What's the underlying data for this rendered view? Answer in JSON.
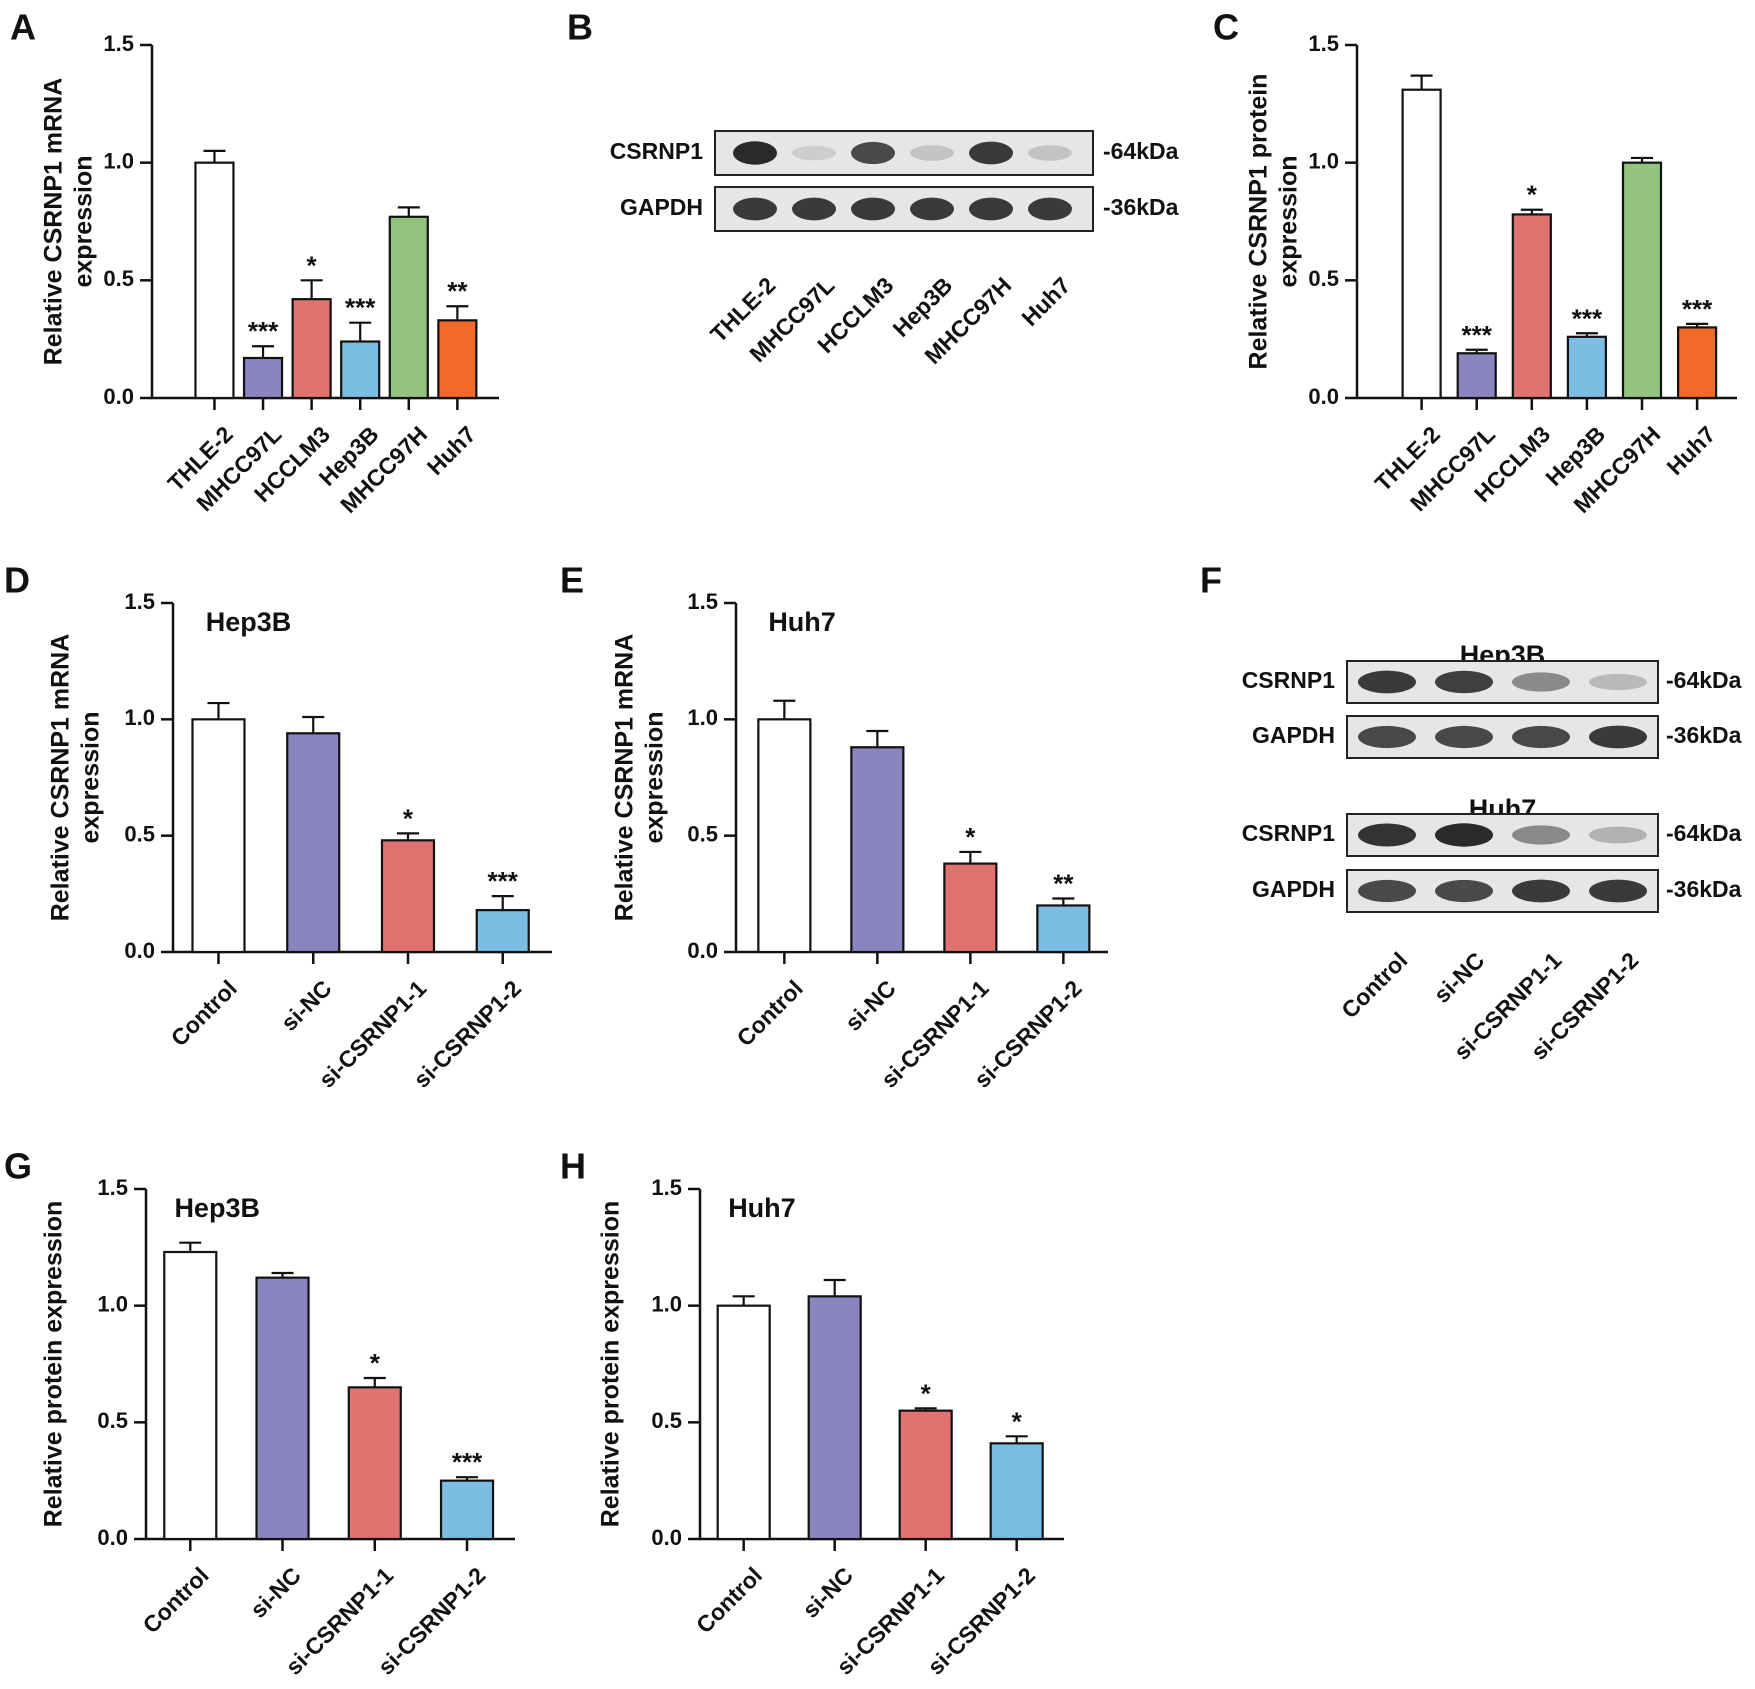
{
  "colors": {
    "Control": "#ffffff",
    "THLE-2": "#ffffff",
    "MHCC97L": "#8a84bf",
    "si-NC": "#8a84bf",
    "HCCLM3": "#e07270",
    "si-CSRNP1-1": "#e07270",
    "Hep3B": "#7bbde3",
    "si-CSRNP1-2": "#7bbde3",
    "MHCC97H": "#93c47d",
    "Huh7": "#f26a2a",
    "axis": "#111111",
    "band": "#1c1c1c"
  },
  "chart_data": [
    {
      "panel": "A",
      "type": "bar",
      "subtitle": "",
      "ylabel_lines": [
        "Relative CSRNP1 mRNA",
        "expression"
      ],
      "ylim": [
        0,
        1.5
      ],
      "yticks": [
        "0.0",
        "0.5",
        "1.0",
        "1.5"
      ],
      "categories": [
        "THLE-2",
        "MHCC97L",
        "HCCLM3",
        "Hep3B",
        "MHCC97H",
        "Huh7"
      ],
      "values": [
        1.0,
        0.17,
        0.42,
        0.24,
        0.77,
        0.33
      ],
      "errors": [
        0.05,
        0.05,
        0.08,
        0.08,
        0.04,
        0.06
      ],
      "significance": [
        "",
        "***",
        "*",
        "***",
        "",
        "**"
      ]
    },
    {
      "panel": "C",
      "type": "bar",
      "subtitle": "",
      "ylabel_lines": [
        "Relative CSRNP1 protein",
        "expression"
      ],
      "ylim": [
        0,
        1.5
      ],
      "yticks": [
        "0.0",
        "0.5",
        "1.0",
        "1.5"
      ],
      "categories": [
        "THLE-2",
        "MHCC97L",
        "HCCLM3",
        "Hep3B",
        "MHCC97H",
        "Huh7"
      ],
      "values": [
        1.31,
        0.19,
        0.78,
        0.26,
        1.0,
        0.3
      ],
      "errors": [
        0.06,
        0.015,
        0.02,
        0.015,
        0.02,
        0.015
      ],
      "significance": [
        "",
        "***",
        "*",
        "***",
        "",
        "***"
      ]
    },
    {
      "panel": "D",
      "type": "bar",
      "subtitle": "Hep3B",
      "ylabel_lines": [
        "Relative CSRNP1 mRNA",
        "expression"
      ],
      "ylim": [
        0,
        1.5
      ],
      "yticks": [
        "0.0",
        "0.5",
        "1.0",
        "1.5"
      ],
      "categories": [
        "Control",
        "si-NC",
        "si-CSRNP1-1",
        "si-CSRNP1-2"
      ],
      "values": [
        1.0,
        0.94,
        0.48,
        0.18
      ],
      "errors": [
        0.07,
        0.07,
        0.03,
        0.06
      ],
      "significance": [
        "",
        "",
        "*",
        "***"
      ]
    },
    {
      "panel": "E",
      "type": "bar",
      "subtitle": "Huh7",
      "ylabel_lines": [
        "Relative CSRNP1 mRNA",
        "expression"
      ],
      "ylim": [
        0,
        1.5
      ],
      "yticks": [
        "0.0",
        "0.5",
        "1.0",
        "1.5"
      ],
      "categories": [
        "Control",
        "si-NC",
        "si-CSRNP1-1",
        "si-CSRNP1-2"
      ],
      "values": [
        1.0,
        0.88,
        0.38,
        0.2
      ],
      "errors": [
        0.08,
        0.07,
        0.05,
        0.03
      ],
      "significance": [
        "",
        "",
        "*",
        "**"
      ]
    },
    {
      "panel": "G",
      "type": "bar",
      "subtitle": "Hep3B",
      "ylabel_lines": [
        "Relative protein expression"
      ],
      "ylim": [
        0,
        1.5
      ],
      "yticks": [
        "0.0",
        "0.5",
        "1.0",
        "1.5"
      ],
      "categories": [
        "Control",
        "si-NC",
        "si-CSRNP1-1",
        "si-CSRNP1-2"
      ],
      "values": [
        1.23,
        1.12,
        0.65,
        0.25
      ],
      "errors": [
        0.04,
        0.02,
        0.04,
        0.015
      ],
      "significance": [
        "",
        "",
        "*",
        "***"
      ]
    },
    {
      "panel": "H",
      "type": "bar",
      "subtitle": "Huh7",
      "ylabel_lines": [
        "Relative protein expression"
      ],
      "ylim": [
        0,
        1.5
      ],
      "yticks": [
        "0.0",
        "0.5",
        "1.0",
        "1.5"
      ],
      "categories": [
        "Control",
        "si-NC",
        "si-CSRNP1-1",
        "si-CSRNP1-2"
      ],
      "values": [
        1.0,
        1.04,
        0.55,
        0.41
      ],
      "errors": [
        0.04,
        0.07,
        0.01,
        0.03
      ],
      "significance": [
        "",
        "",
        "*",
        "*"
      ]
    }
  ],
  "blots": [
    {
      "panel": "B",
      "groups": [
        {
          "title": "",
          "rows": [
            {
              "label": "CSRNP1",
              "size": "-64kDa",
              "intensities": [
                0.95,
                0.22,
                0.85,
                0.3,
                0.9,
                0.3
              ]
            },
            {
              "label": "GAPDH",
              "size": "-36kDa",
              "intensities": [
                0.9,
                0.9,
                0.9,
                0.9,
                0.9,
                0.9
              ]
            }
          ]
        }
      ],
      "lanes": [
        "THLE-2",
        "MHCC97L",
        "HCCLM3",
        "Hep3B",
        "MHCC97H",
        "Huh7"
      ]
    },
    {
      "panel": "F",
      "groups": [
        {
          "title": "Hep3B",
          "rows": [
            {
              "label": "CSRNP1",
              "size": "-64kDa",
              "intensities": [
                0.9,
                0.88,
                0.6,
                0.35
              ]
            },
            {
              "label": "GAPDH",
              "size": "-36kDa",
              "intensities": [
                0.85,
                0.85,
                0.85,
                0.9
              ]
            }
          ]
        },
        {
          "title": "Huh7",
          "rows": [
            {
              "label": "CSRNP1",
              "size": "-64kDa",
              "intensities": [
                0.92,
                0.95,
                0.6,
                0.4
              ]
            },
            {
              "label": "GAPDH",
              "size": "-36kDa",
              "intensities": [
                0.85,
                0.85,
                0.9,
                0.9
              ]
            }
          ]
        }
      ],
      "lanes": [
        "Control",
        "si-NC",
        "si-CSRNP1-1",
        "si-CSRNP1-2"
      ]
    }
  ]
}
